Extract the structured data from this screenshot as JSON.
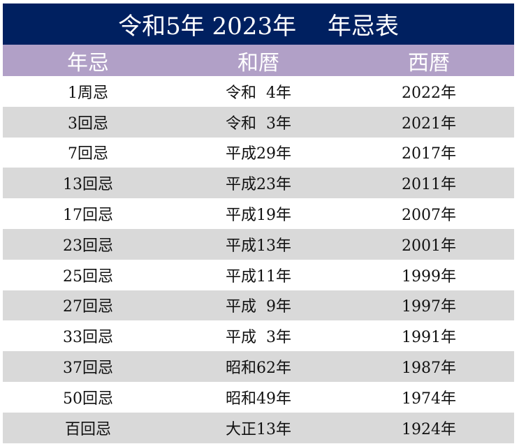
{
  "title": "令和5年 2023年　 年忌表",
  "colors": {
    "title_bg": "#002060",
    "header_bg": "#b1a0c7",
    "shade_row": "#d9d9d9"
  },
  "headers": [
    "年忌",
    "和暦",
    "西暦"
  ],
  "rows": [
    {
      "nenki": "1周忌",
      "wareki": "令和  4年",
      "seireki": "2022年"
    },
    {
      "nenki": "3回忌",
      "wareki": "令和  3年",
      "seireki": "2021年"
    },
    {
      "nenki": "7回忌",
      "wareki": "平成29年",
      "seireki": "2017年"
    },
    {
      "nenki": "13回忌",
      "wareki": "平成23年",
      "seireki": "2011年"
    },
    {
      "nenki": "17回忌",
      "wareki": "平成19年",
      "seireki": "2007年"
    },
    {
      "nenki": "23回忌",
      "wareki": "平成13年",
      "seireki": "2001年"
    },
    {
      "nenki": "25回忌",
      "wareki": "平成11年",
      "seireki": "1999年"
    },
    {
      "nenki": "27回忌",
      "wareki": "平成  9年",
      "seireki": "1997年"
    },
    {
      "nenki": "33回忌",
      "wareki": "平成  3年",
      "seireki": "1991年"
    },
    {
      "nenki": "37回忌",
      "wareki": "昭和62年",
      "seireki": "1987年"
    },
    {
      "nenki": "50回忌",
      "wareki": "昭和49年",
      "seireki": "1974年"
    },
    {
      "nenki": "百回忌",
      "wareki": "大正13年",
      "seireki": "1924年"
    }
  ]
}
